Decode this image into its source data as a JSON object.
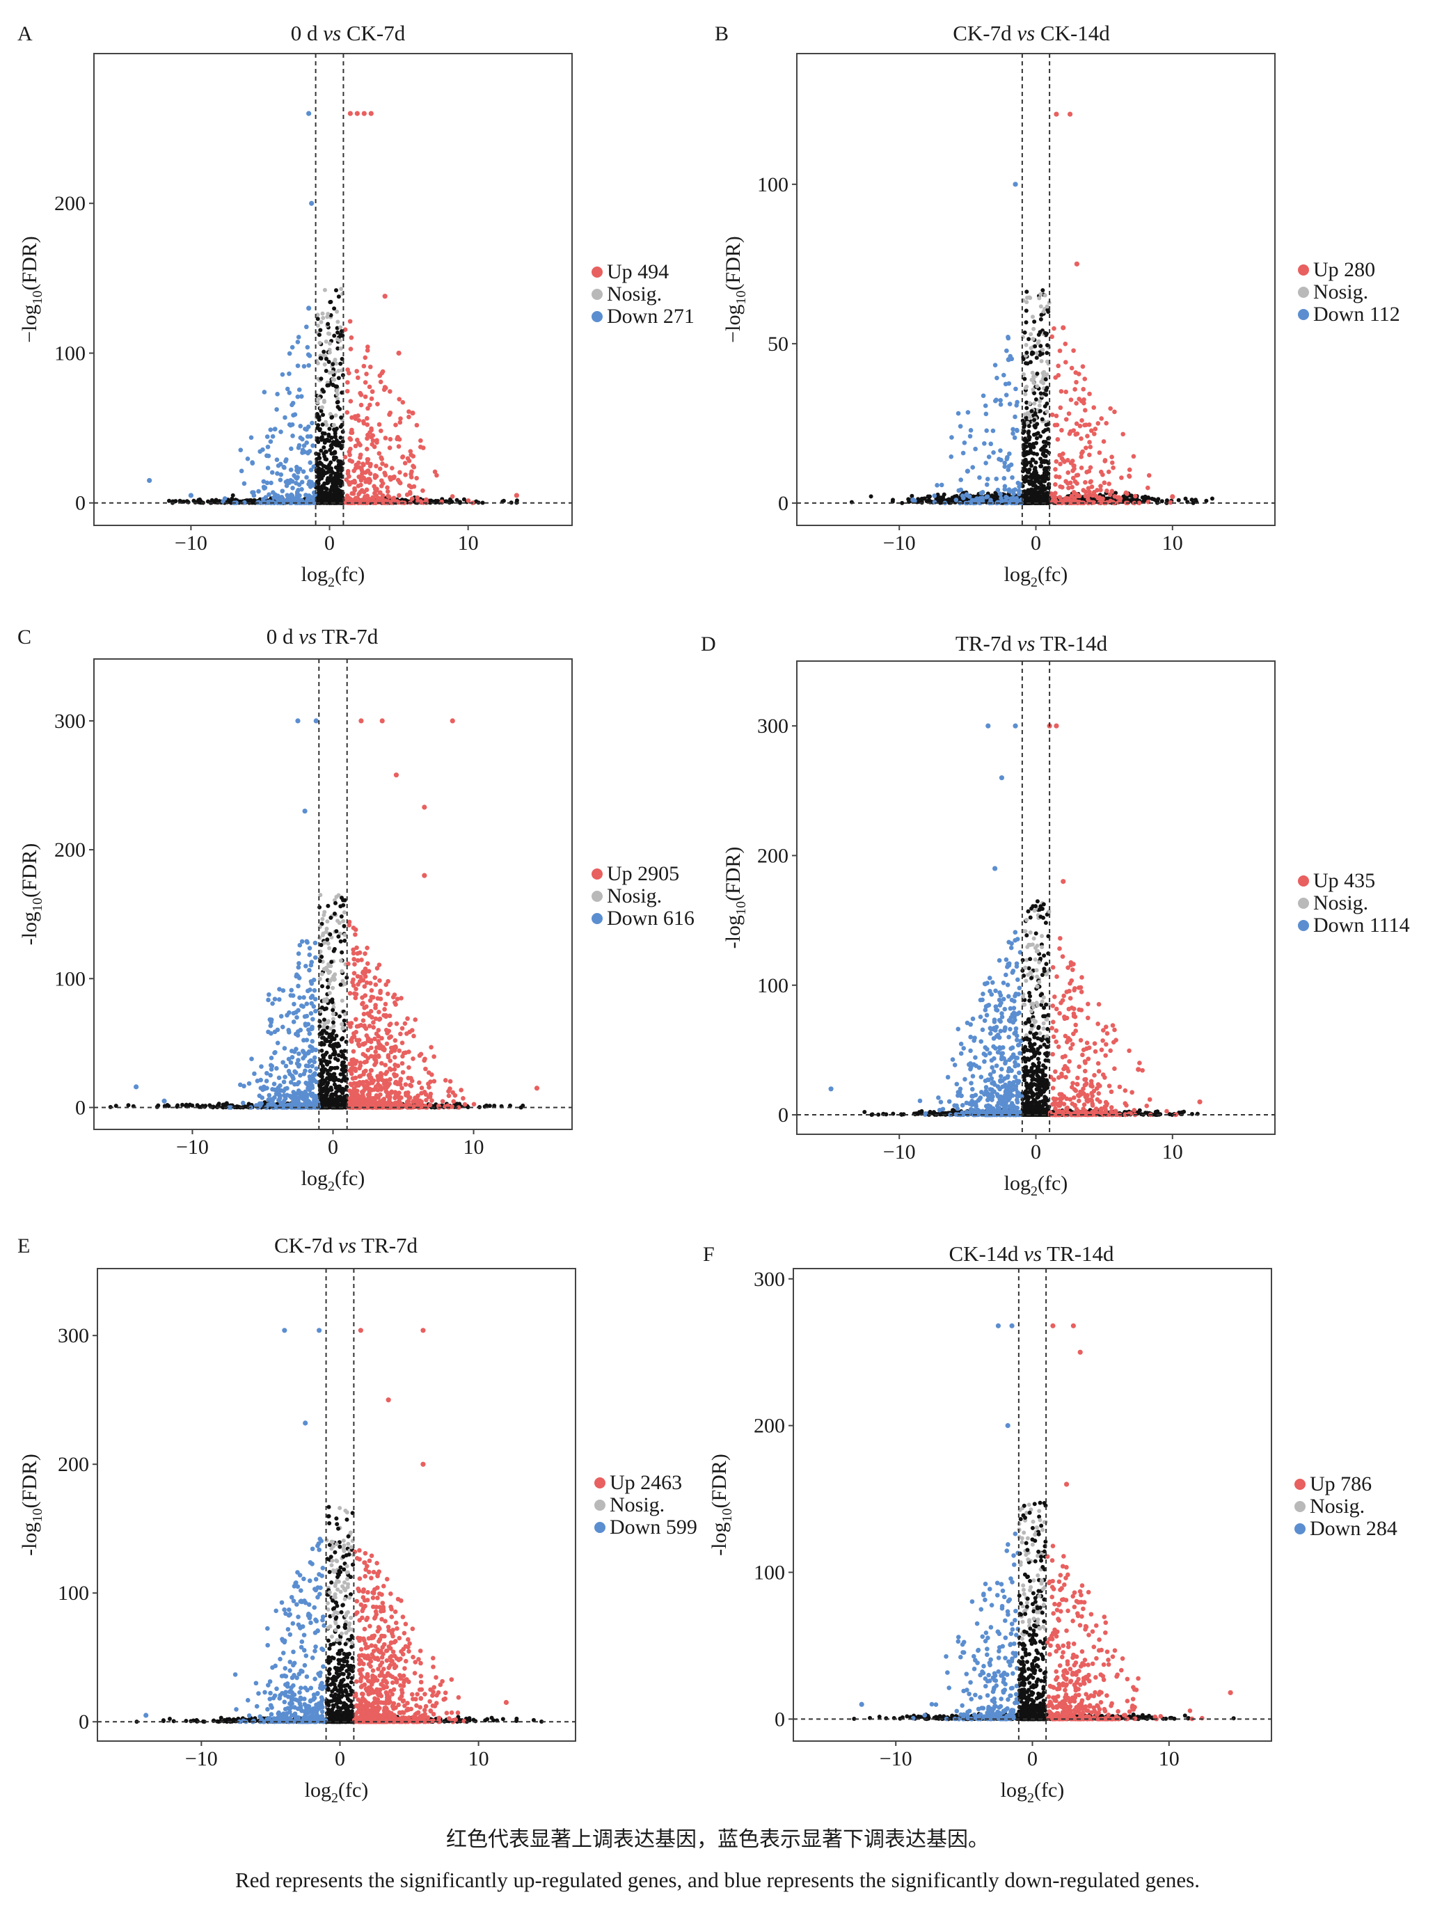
{
  "colors": {
    "up": "#e8605f",
    "nosig": "#b9b9b9",
    "down": "#5b8ed0",
    "nonsig_black": "#111111"
  },
  "chart_data": [
    {
      "type": "scatter",
      "panel_label": "A",
      "title_parts": [
        "0 d ",
        "vs",
        " CK-7d"
      ],
      "xlabel_main": "log",
      "xlabel_sub": "2",
      "xlabel_tail": "(fc)",
      "ylabel_head": "−log",
      "ylabel_sub": "10",
      "ylabel_tail": "(FDR)",
      "xlim": [
        -17,
        17.5
      ],
      "ylim": [
        -15,
        300
      ],
      "xticks": [
        -10,
        0,
        10
      ],
      "yticks": [
        0,
        100,
        200
      ],
      "xcut": 1,
      "legend": [
        {
          "key": "up",
          "label": "Up 494",
          "color": "#e8605f"
        },
        {
          "key": "nosig",
          "label": "Nosig.",
          "color": "#b9b9b9"
        },
        {
          "key": "down",
          "label": "Down 271",
          "color": "#5b8ed0"
        }
      ],
      "series": [
        {
          "name": "Up",
          "count": 494,
          "color": "#e8605f",
          "notable_points": [
            [
              1.5,
              260
            ],
            [
              2,
              260
            ],
            [
              2.5,
              260
            ],
            [
              3,
              260
            ],
            [
              4,
              138
            ],
            [
              5,
              100
            ],
            [
              6,
              60
            ],
            [
              13.5,
              5
            ]
          ]
        },
        {
          "name": "Down",
          "count": 271,
          "color": "#5b8ed0",
          "notable_points": [
            [
              -1.5,
              260
            ],
            [
              -1.3,
              200
            ],
            [
              -1.5,
              130
            ],
            [
              -13,
              15
            ],
            [
              -10,
              5
            ]
          ]
        }
      ]
    },
    {
      "type": "scatter",
      "panel_label": "B",
      "title_parts": [
        "CK-7d ",
        "vs",
        " CK-14d"
      ],
      "xlabel_main": "log",
      "xlabel_sub": "2",
      "xlabel_tail": "(fc)",
      "ylabel_head": "−log",
      "ylabel_sub": "10",
      "ylabel_tail": "(FDR)",
      "xlim": [
        -17.5,
        17.5
      ],
      "ylim": [
        -7,
        141
      ],
      "xticks": [
        -10,
        0,
        10
      ],
      "yticks": [
        0,
        50,
        100
      ],
      "xcut": 1,
      "legend": [
        {
          "key": "up",
          "label": "Up 280",
          "color": "#e8605f"
        },
        {
          "key": "nosig",
          "label": "Nosig.",
          "color": "#b9b9b9"
        },
        {
          "key": "down",
          "label": "Down 112",
          "color": "#5b8ed0"
        }
      ],
      "series": [
        {
          "name": "Up",
          "count": 280,
          "color": "#e8605f",
          "notable_points": [
            [
              1.5,
              122
            ],
            [
              2.5,
              122
            ],
            [
              3,
              75
            ],
            [
              2,
              55
            ],
            [
              10,
              2
            ]
          ]
        },
        {
          "name": "Down",
          "count": 112,
          "color": "#5b8ed0",
          "notable_points": [
            [
              -1.5,
              100
            ],
            [
              -2,
              45
            ],
            [
              -5,
              10
            ],
            [
              -9,
              1
            ]
          ]
        }
      ]
    },
    {
      "type": "scatter",
      "panel_label": "C",
      "title_parts": [
        "0 d ",
        "vs",
        " TR-7d"
      ],
      "xlabel_main": "log",
      "xlabel_sub": "2",
      "xlabel_tail": "(fc)",
      "ylabel_head": "-log",
      "ylabel_sub": "10",
      "ylabel_tail": "(FDR)",
      "xlim": [
        -17,
        17
      ],
      "ylim": [
        -17,
        348
      ],
      "xticks": [
        -10,
        0,
        10
      ],
      "yticks": [
        0,
        100,
        200,
        300
      ],
      "xcut": 1,
      "legend": [
        {
          "key": "up",
          "label": "Up 2905",
          "color": "#e8605f"
        },
        {
          "key": "nosig",
          "label": "Nosig.",
          "color": "#b9b9b9"
        },
        {
          "key": "down",
          "label": "Down 616",
          "color": "#5b8ed0"
        }
      ],
      "series": [
        {
          "name": "Up",
          "count": 2905,
          "color": "#e8605f",
          "notable_points": [
            [
              2,
              300
            ],
            [
              3.5,
              300
            ],
            [
              8.5,
              300
            ],
            [
              4.5,
              258
            ],
            [
              6.5,
              233
            ],
            [
              6.5,
              180
            ],
            [
              14.5,
              15
            ]
          ]
        },
        {
          "name": "Down",
          "count": 616,
          "color": "#5b8ed0",
          "notable_points": [
            [
              -2.5,
              300
            ],
            [
              -1.2,
              300
            ],
            [
              -2,
              230
            ],
            [
              -14,
              16
            ],
            [
              -12,
              5
            ]
          ]
        }
      ]
    },
    {
      "type": "scatter",
      "panel_label": "D",
      "title_parts": [
        "TR-7d ",
        "vs",
        " TR-14d"
      ],
      "xlabel_main": "log",
      "xlabel_sub": "2",
      "xlabel_tail": "(fc)",
      "ylabel_head": "-log",
      "ylabel_sub": "10",
      "ylabel_tail": "(FDR)",
      "xlim": [
        -17.5,
        17.5
      ],
      "ylim": [
        -15,
        350
      ],
      "xticks": [
        -10,
        0,
        10
      ],
      "yticks": [
        0,
        100,
        200,
        300
      ],
      "xcut": 1,
      "legend": [
        {
          "key": "up",
          "label": "Up 435",
          "color": "#e8605f"
        },
        {
          "key": "nosig",
          "label": "Nosig.",
          "color": "#b9b9b9"
        },
        {
          "key": "down",
          "label": "Down 1114",
          "color": "#5b8ed0"
        }
      ],
      "series": [
        {
          "name": "Up",
          "count": 435,
          "color": "#e8605f",
          "notable_points": [
            [
              1,
              300
            ],
            [
              1.5,
              300
            ],
            [
              2,
              180
            ],
            [
              7.5,
              35
            ],
            [
              12,
              10
            ]
          ]
        },
        {
          "name": "Down",
          "count": 1114,
          "color": "#5b8ed0",
          "notable_points": [
            [
              -3.5,
              300
            ],
            [
              -1.5,
              300
            ],
            [
              -2.5,
              260
            ],
            [
              -3,
              190
            ],
            [
              -15,
              20
            ]
          ]
        }
      ]
    },
    {
      "type": "scatter",
      "panel_label": "E",
      "title_parts": [
        "CK-7d ",
        "vs",
        " TR-7d"
      ],
      "xlabel_main": "log",
      "xlabel_sub": "2",
      "xlabel_tail": "(fc)",
      "ylabel_head": "-log",
      "ylabel_sub": "10",
      "ylabel_tail": "(FDR)",
      "xlim": [
        -17.5,
        17
      ],
      "ylim": [
        -15,
        352
      ],
      "xticks": [
        -10,
        0,
        10
      ],
      "yticks": [
        0,
        100,
        200,
        300
      ],
      "xcut": 1,
      "legend": [
        {
          "key": "up",
          "label": "Up 2463",
          "color": "#e8605f"
        },
        {
          "key": "nosig",
          "label": "Nosig.",
          "color": "#b9b9b9"
        },
        {
          "key": "down",
          "label": "Down 599",
          "color": "#5b8ed0"
        }
      ],
      "series": [
        {
          "name": "Up",
          "count": 2463,
          "color": "#e8605f",
          "notable_points": [
            [
              1.5,
              304
            ],
            [
              6,
              304
            ],
            [
              3.5,
              250
            ],
            [
              6,
              200
            ],
            [
              12,
              15
            ]
          ]
        },
        {
          "name": "Down",
          "count": 599,
          "color": "#5b8ed0",
          "notable_points": [
            [
              -4,
              304
            ],
            [
              -1.5,
              304
            ],
            [
              -2.5,
              232
            ],
            [
              -14,
              5
            ]
          ]
        }
      ]
    },
    {
      "type": "scatter",
      "panel_label": "F",
      "title_parts": [
        "CK-14d ",
        "vs",
        " TR-14d"
      ],
      "xlabel_main": "log",
      "xlabel_sub": "2",
      "xlabel_tail": "(fc)",
      "ylabel_head": "-log",
      "ylabel_sub": "10",
      "ylabel_tail": "(FDR)",
      "xlim": [
        -17.5,
        17.5
      ],
      "ylim": [
        -15,
        307
      ],
      "xticks": [
        -10,
        0,
        10
      ],
      "yticks": [
        0,
        100,
        200,
        300
      ],
      "xcut": 1,
      "legend": [
        {
          "key": "up",
          "label": "Up 786",
          "color": "#e8605f"
        },
        {
          "key": "nosig",
          "label": "Nosig.",
          "color": "#b9b9b9"
        },
        {
          "key": "down",
          "label": "Down 284",
          "color": "#5b8ed0"
        }
      ],
      "series": [
        {
          "name": "Up",
          "count": 786,
          "color": "#e8605f",
          "notable_points": [
            [
              1.5,
              268
            ],
            [
              3,
              268
            ],
            [
              3.5,
              250
            ],
            [
              2.5,
              160
            ],
            [
              14.5,
              18
            ]
          ]
        },
        {
          "name": "Down",
          "count": 284,
          "color": "#5b8ed0",
          "notable_points": [
            [
              -2.5,
              268
            ],
            [
              -1.5,
              268
            ],
            [
              -1.8,
              200
            ],
            [
              -12.5,
              10
            ]
          ]
        }
      ]
    }
  ],
  "caption": {
    "zh": "红色代表显著上调表达基因，蓝色表示显著下调表达基因。",
    "en": "Red represents the significantly up-regulated genes, and blue represents the significantly down-regulated genes."
  }
}
